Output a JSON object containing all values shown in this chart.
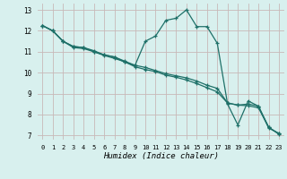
{
  "xlabel": "Humidex (Indice chaleur)",
  "bg_color": "#d8f0ee",
  "grid_color": "#c8b8b8",
  "line_color": "#1e7068",
  "xlim_min": -0.5,
  "xlim_max": 23.5,
  "ylim_min": 6.8,
  "ylim_max": 13.3,
  "xticks": [
    0,
    1,
    2,
    3,
    4,
    5,
    6,
    7,
    8,
    9,
    10,
    11,
    12,
    13,
    14,
    15,
    16,
    17,
    18,
    19,
    20,
    21,
    22,
    23
  ],
  "yticks": [
    7,
    8,
    9,
    10,
    11,
    12,
    13
  ],
  "line1_x": [
    0,
    1,
    2,
    3,
    4,
    5,
    6,
    7,
    8,
    9,
    10,
    11,
    12,
    13,
    14,
    15,
    16,
    17,
    18,
    19,
    20,
    21,
    22,
    23
  ],
  "line1_y": [
    12.25,
    12.0,
    11.5,
    11.25,
    11.2,
    11.0,
    10.85,
    10.75,
    10.5,
    10.35,
    10.25,
    10.1,
    9.95,
    9.85,
    9.75,
    9.6,
    9.4,
    9.25,
    8.55,
    8.45,
    8.5,
    8.4,
    7.35,
    7.1
  ],
  "line2_x": [
    0,
    1,
    2,
    3,
    4,
    5,
    6,
    7,
    8,
    9,
    10,
    11,
    12,
    13,
    14,
    15,
    16,
    17,
    18,
    19,
    20,
    21,
    22,
    23
  ],
  "line2_y": [
    12.25,
    12.0,
    11.5,
    11.25,
    11.2,
    11.05,
    10.85,
    10.75,
    10.55,
    10.35,
    11.5,
    11.75,
    12.5,
    12.6,
    13.0,
    12.2,
    12.2,
    11.4,
    8.5,
    7.5,
    8.65,
    8.4,
    7.4,
    7.05
  ],
  "line3_x": [
    0,
    1,
    2,
    3,
    4,
    5,
    6,
    7,
    8,
    9,
    10,
    11,
    12,
    13,
    14,
    15,
    16,
    17,
    18,
    19,
    20,
    21,
    22,
    23
  ],
  "line3_y": [
    12.25,
    12.0,
    11.5,
    11.2,
    11.15,
    11.0,
    10.82,
    10.68,
    10.52,
    10.28,
    10.15,
    10.05,
    9.88,
    9.78,
    9.65,
    9.48,
    9.28,
    9.08,
    8.55,
    8.45,
    8.42,
    8.32,
    7.38,
    7.08
  ]
}
